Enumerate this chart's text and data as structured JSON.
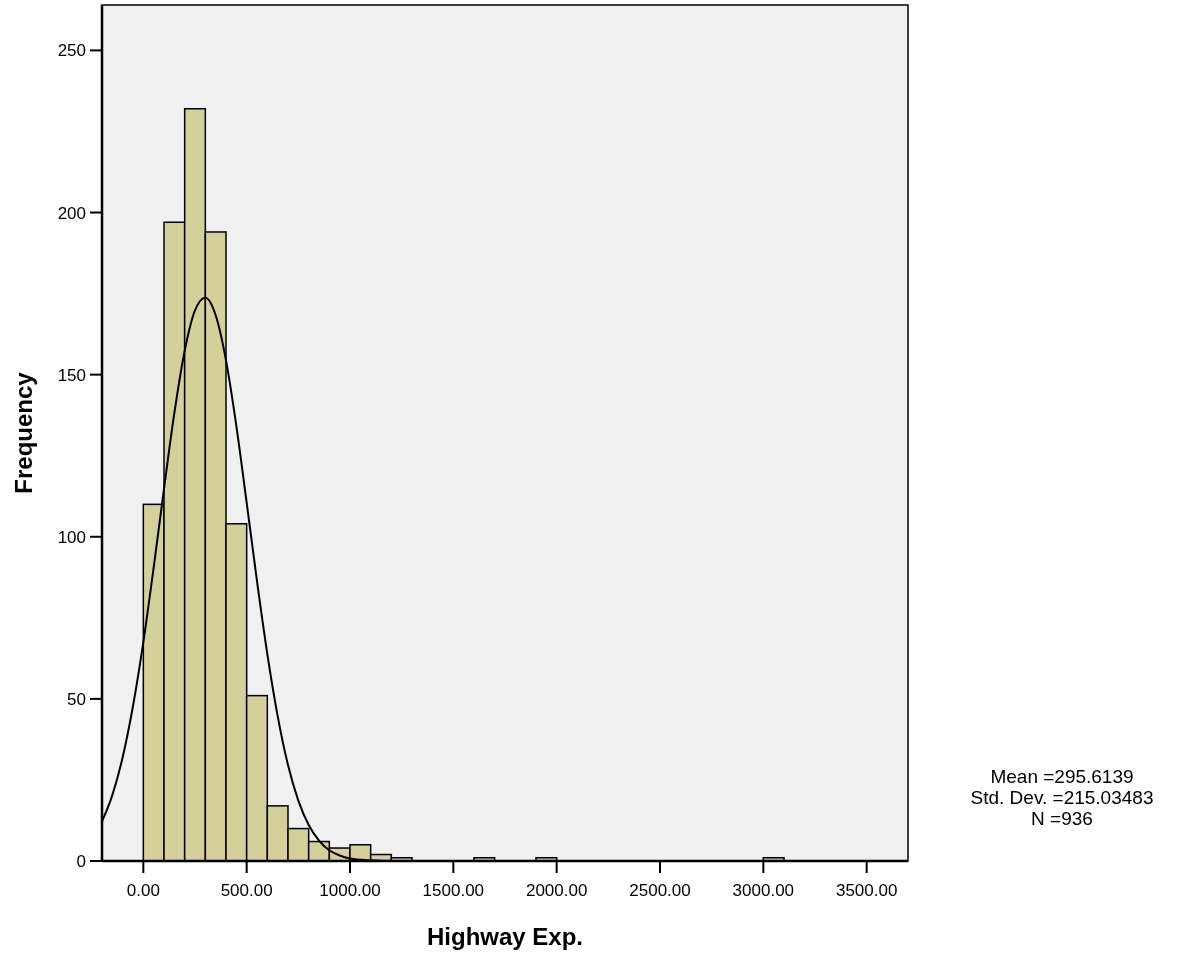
{
  "chart_data": {
    "type": "histogram",
    "xlabel": "Highway Exp.",
    "ylabel": "Frequency",
    "bins": [
      0,
      100,
      200,
      300,
      400,
      500,
      600,
      700,
      800,
      900,
      1000,
      1100,
      1200,
      1300,
      1400,
      1500,
      1600,
      1700,
      1800,
      1900,
      2000,
      2100,
      2200,
      2300,
      2400,
      2500,
      2600,
      2700,
      2800,
      2900,
      3000,
      3100
    ],
    "values": [
      110,
      197,
      232,
      194,
      104,
      51,
      17,
      10,
      6,
      4,
      5,
      2,
      1,
      0,
      0,
      0,
      1,
      0,
      0,
      1,
      0,
      0,
      0,
      0,
      0,
      0,
      0,
      0,
      0,
      0,
      1
    ],
    "color": "#d4d09a",
    "series": [
      {
        "type": "line",
        "color": "#000000",
        "x": [
          -200,
          -150,
          -100,
          -50,
          0,
          50,
          100,
          150,
          200,
          250,
          300,
          350,
          400,
          450,
          500,
          550,
          600,
          650,
          700,
          750,
          800,
          850,
          900,
          950,
          1000,
          1100,
          1200,
          3700
        ],
        "values": [
          12.2,
          20.3,
          32.0,
          47.8,
          67.5,
          90.5,
          114.8,
          138.1,
          157.3,
          169.8,
          173.7,
          168.3,
          154.4,
          134.2,
          110.5,
          86.3,
          63.8,
          44.7,
          29.6,
          18.6,
          11.1,
          6.3,
          3.3,
          1.7,
          0.8,
          0.2,
          0,
          0
        ]
      }
    ],
    "xlim": [
      -200,
      3700
    ],
    "ylim": [
      0,
      264
    ],
    "xticks": [
      {
        "value": 0,
        "label": "0.00"
      },
      {
        "value": 500,
        "label": "500.00"
      },
      {
        "value": 1000,
        "label": "1000.00"
      },
      {
        "value": 1500,
        "label": "1500.00"
      },
      {
        "value": 2000,
        "label": "2000.00"
      },
      {
        "value": 2500,
        "label": "2500.00"
      },
      {
        "value": 3000,
        "label": "3000.00"
      },
      {
        "value": 3500,
        "label": "3500.00"
      }
    ],
    "yticks": [
      0,
      50,
      100,
      150,
      200,
      250
    ],
    "grid": false,
    "annotations": [
      "Mean =295.6139",
      "Std. Dev. =215.03483",
      "N =936"
    ]
  }
}
